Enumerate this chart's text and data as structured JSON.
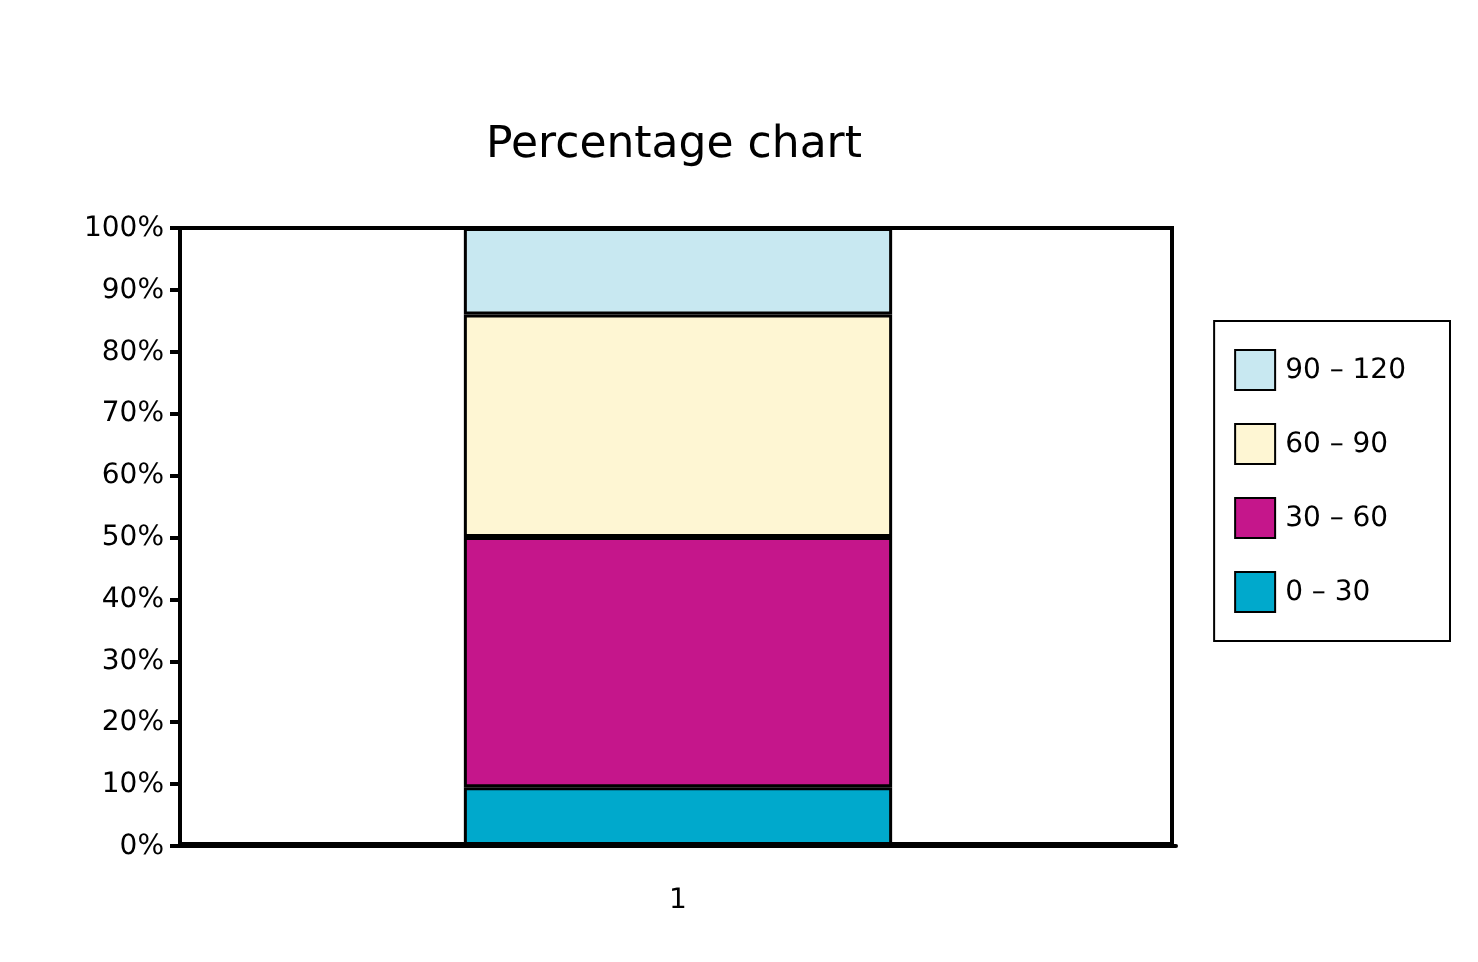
{
  "chart_data": {
    "type": "bar",
    "title": "Percentage chart",
    "categories": [
      "1"
    ],
    "stacked": true,
    "series": [
      {
        "name": "0 – 30",
        "color": "#00a9cc",
        "values": [
          9.5
        ]
      },
      {
        "name": "30 – 60",
        "color": "#c5168b",
        "values": [
          40.5
        ]
      },
      {
        "name": "60 – 90",
        "color": "#fef6d3",
        "values": [
          36
        ]
      },
      {
        "name": "90 – 120",
        "color": "#c8e8f1",
        "values": [
          14
        ]
      }
    ],
    "ylim": [
      0,
      100
    ],
    "yticks": [
      {
        "value": 0,
        "label": "0%"
      },
      {
        "value": 10,
        "label": "10%"
      },
      {
        "value": 20,
        "label": "20%"
      },
      {
        "value": 30,
        "label": "30%"
      },
      {
        "value": 40,
        "label": "40%"
      },
      {
        "value": 50,
        "label": "50%"
      },
      {
        "value": 60,
        "label": "60%"
      },
      {
        "value": 70,
        "label": "70%"
      },
      {
        "value": 80,
        "label": "80%"
      },
      {
        "value": 90,
        "label": "90%"
      },
      {
        "value": 100,
        "label": "100%"
      }
    ],
    "grid": false,
    "legend": "right"
  }
}
